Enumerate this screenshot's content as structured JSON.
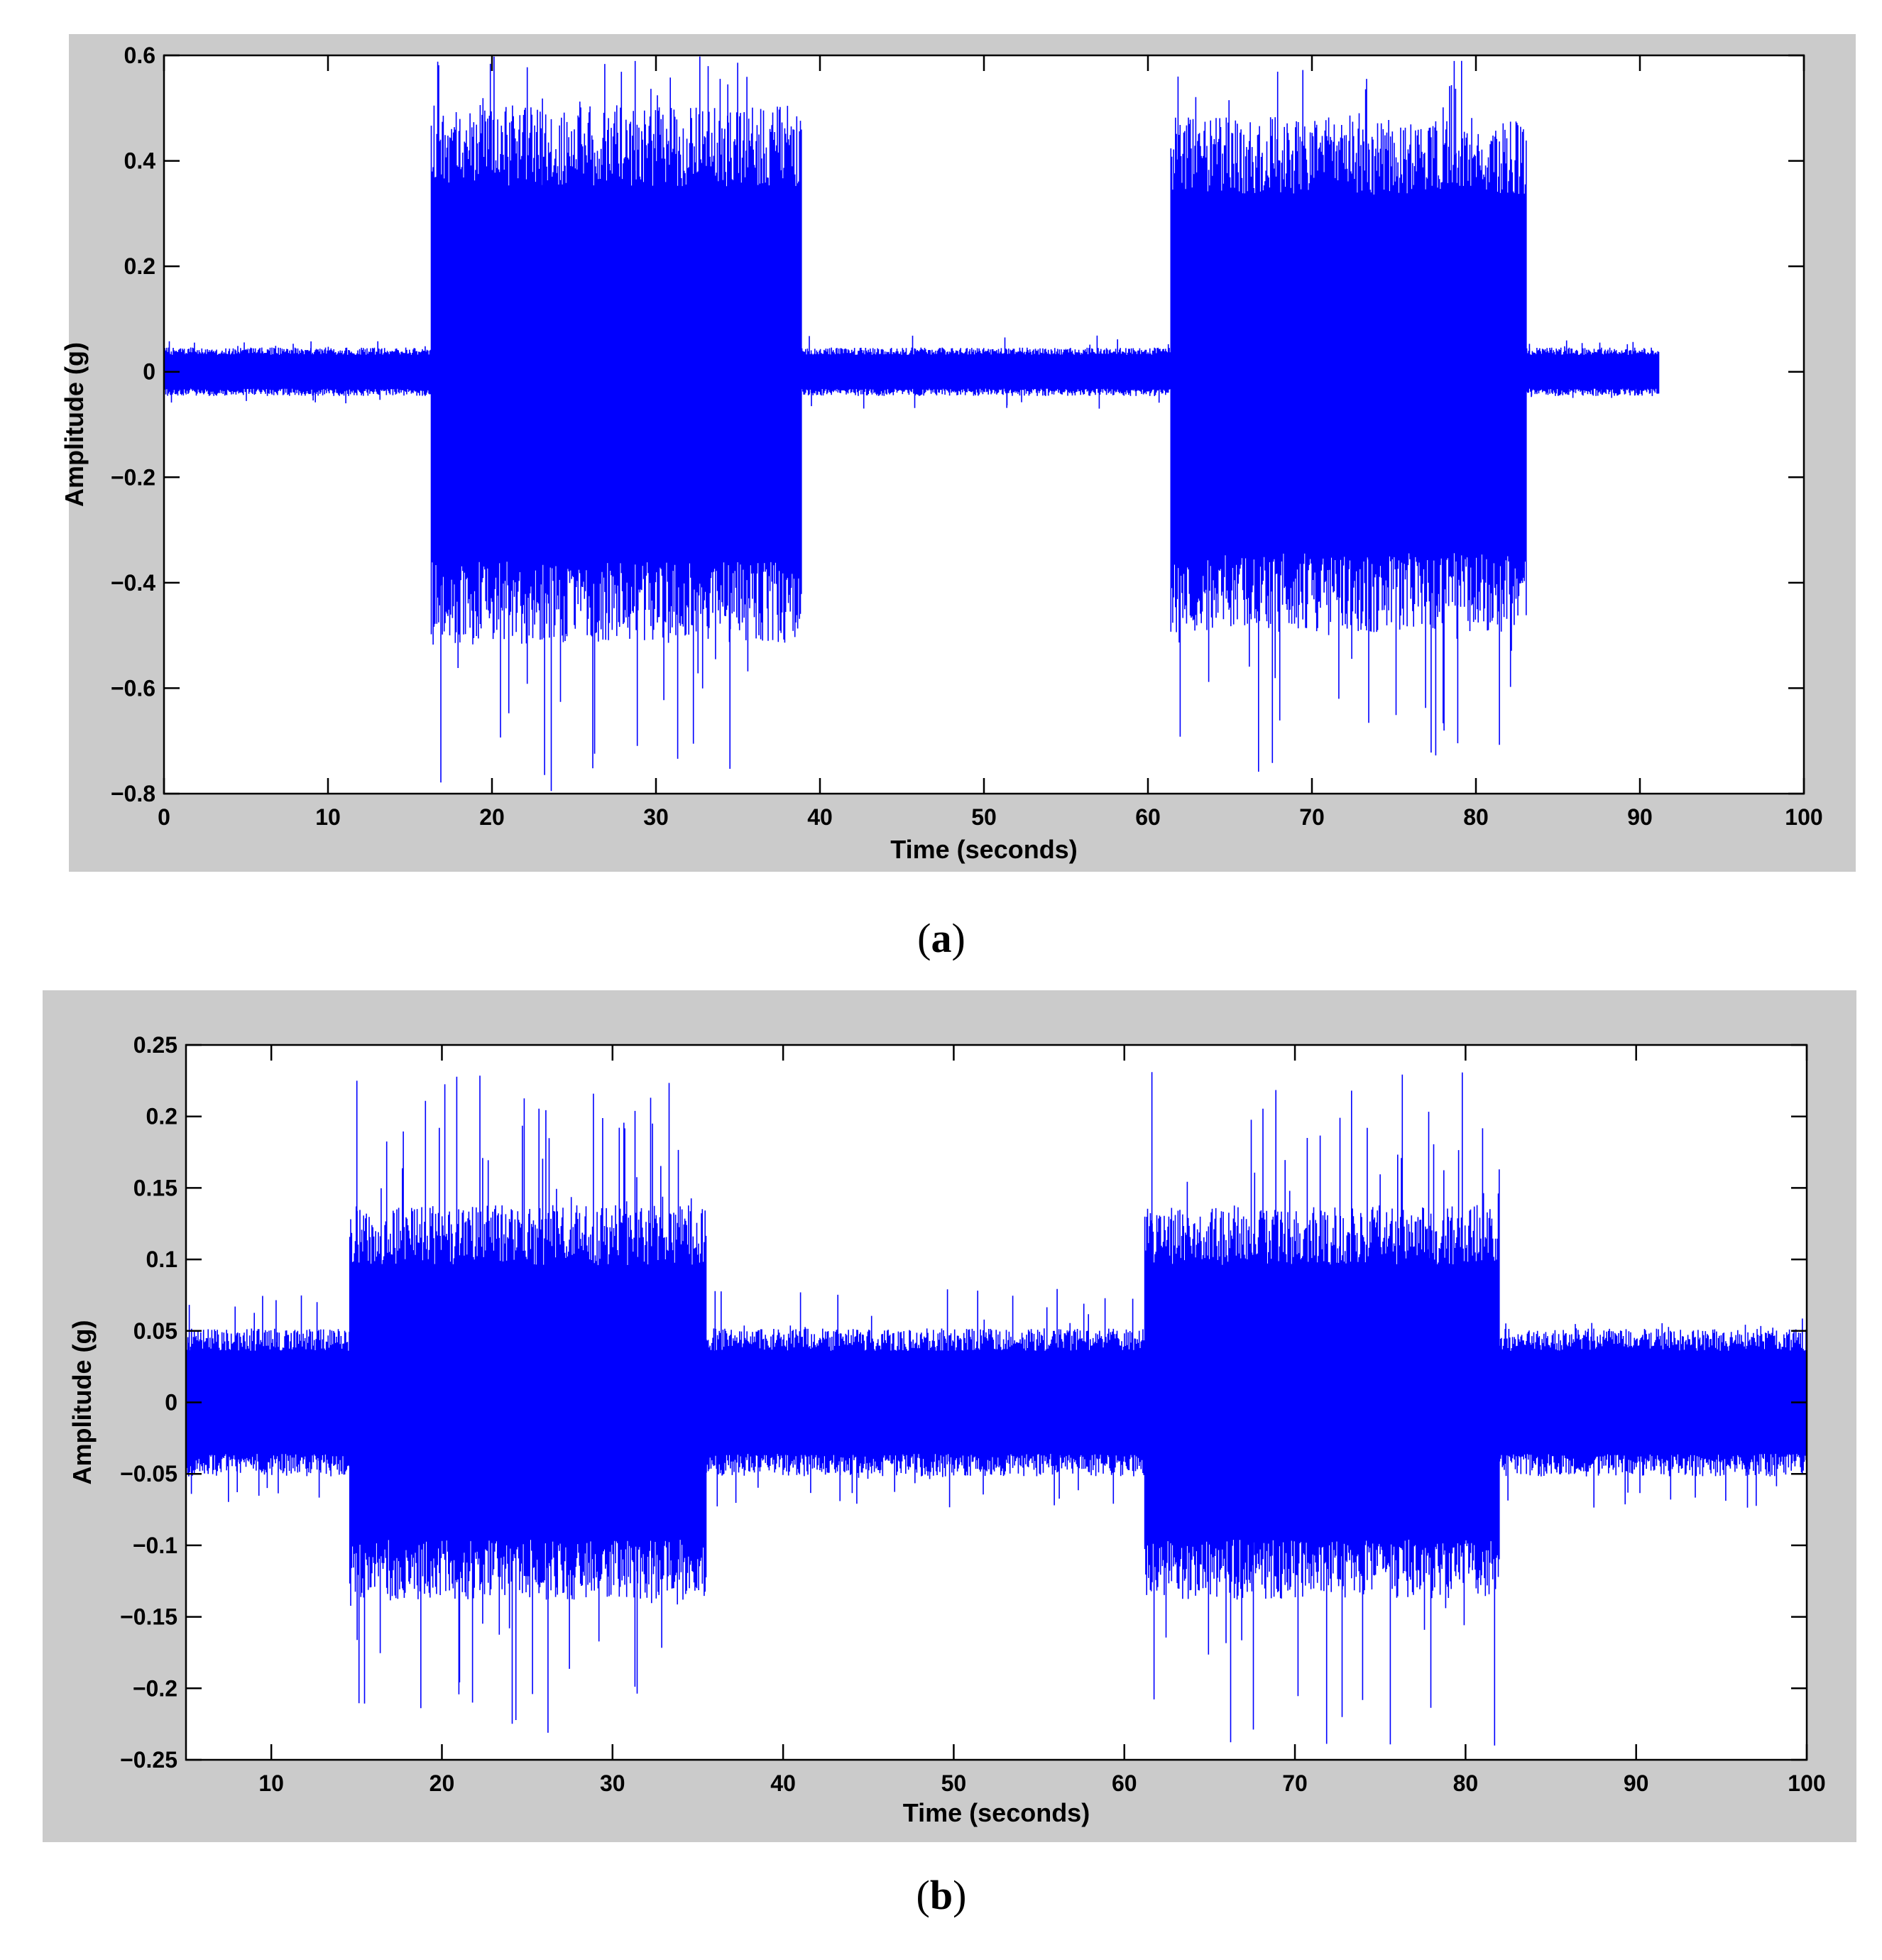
{
  "chart_data": [
    {
      "type": "line",
      "panel": "a",
      "caption_letter": "a",
      "title": "",
      "xlabel": "Time (seconds)",
      "ylabel": "Amplitude (g)",
      "xlim": [
        0,
        100
      ],
      "ylim": [
        -0.8,
        0.6
      ],
      "xticks": [
        "0",
        "10",
        "20",
        "30",
        "40",
        "50",
        "60",
        "70",
        "80",
        "90",
        "100"
      ],
      "yticks": [
        "0.6",
        "0.4",
        "0.2",
        "0",
        "−0.2",
        "−0.4",
        "−0.6",
        "−0.8"
      ],
      "line_color": "#0000ff",
      "grid": false,
      "data_end": 91.2,
      "segments": [
        {
          "start": 0.0,
          "end": 16.3,
          "upper": 0.04,
          "lower": -0.04,
          "peak_upper": 0.06,
          "peak_lower": -0.06
        },
        {
          "start": 16.3,
          "end": 38.9,
          "upper": 0.44,
          "lower": -0.45,
          "peak_upper": 0.6,
          "peak_lower": -0.8
        },
        {
          "start": 38.9,
          "end": 61.4,
          "upper": 0.04,
          "lower": -0.04,
          "peak_upper": 0.07,
          "peak_lower": -0.07
        },
        {
          "start": 61.4,
          "end": 83.1,
          "upper": 0.42,
          "lower": -0.43,
          "peak_upper": 0.6,
          "peak_lower": -0.76
        },
        {
          "start": 83.1,
          "end": 91.2,
          "upper": 0.04,
          "lower": -0.04,
          "peak_upper": 0.06,
          "peak_lower": -0.05
        }
      ]
    },
    {
      "type": "line",
      "panel": "b",
      "caption_letter": "b",
      "title": "",
      "xlabel": "Time (seconds)",
      "ylabel": "Amplitude (g)",
      "xlim": [
        5,
        100
      ],
      "ylim": [
        -0.25,
        0.25
      ],
      "xticks": [
        "10",
        "20",
        "30",
        "40",
        "50",
        "60",
        "70",
        "80",
        "90",
        "100"
      ],
      "yticks": [
        "0.25",
        "0.2",
        "0.15",
        "0.1",
        "0.05",
        "0",
        "−0.05",
        "−0.1",
        "−0.15",
        "−0.2",
        "−0.25"
      ],
      "line_color": "#0000ff",
      "grid": false,
      "data_end": 100,
      "segments": [
        {
          "start": 5.0,
          "end": 14.6,
          "upper": 0.045,
          "lower": -0.045,
          "peak_upper": 0.075,
          "peak_lower": -0.07
        },
        {
          "start": 14.6,
          "end": 35.5,
          "upper": 0.12,
          "lower": -0.12,
          "peak_upper": 0.23,
          "peak_lower": -0.235
        },
        {
          "start": 35.5,
          "end": 61.2,
          "upper": 0.045,
          "lower": -0.045,
          "peak_upper": 0.08,
          "peak_lower": -0.075
        },
        {
          "start": 61.2,
          "end": 82.0,
          "upper": 0.12,
          "lower": -0.12,
          "peak_upper": 0.232,
          "peak_lower": -0.24
        },
        {
          "start": 82.0,
          "end": 100.0,
          "upper": 0.045,
          "lower": -0.045,
          "peak_upper": 0.06,
          "peak_lower": -0.075
        }
      ]
    }
  ]
}
